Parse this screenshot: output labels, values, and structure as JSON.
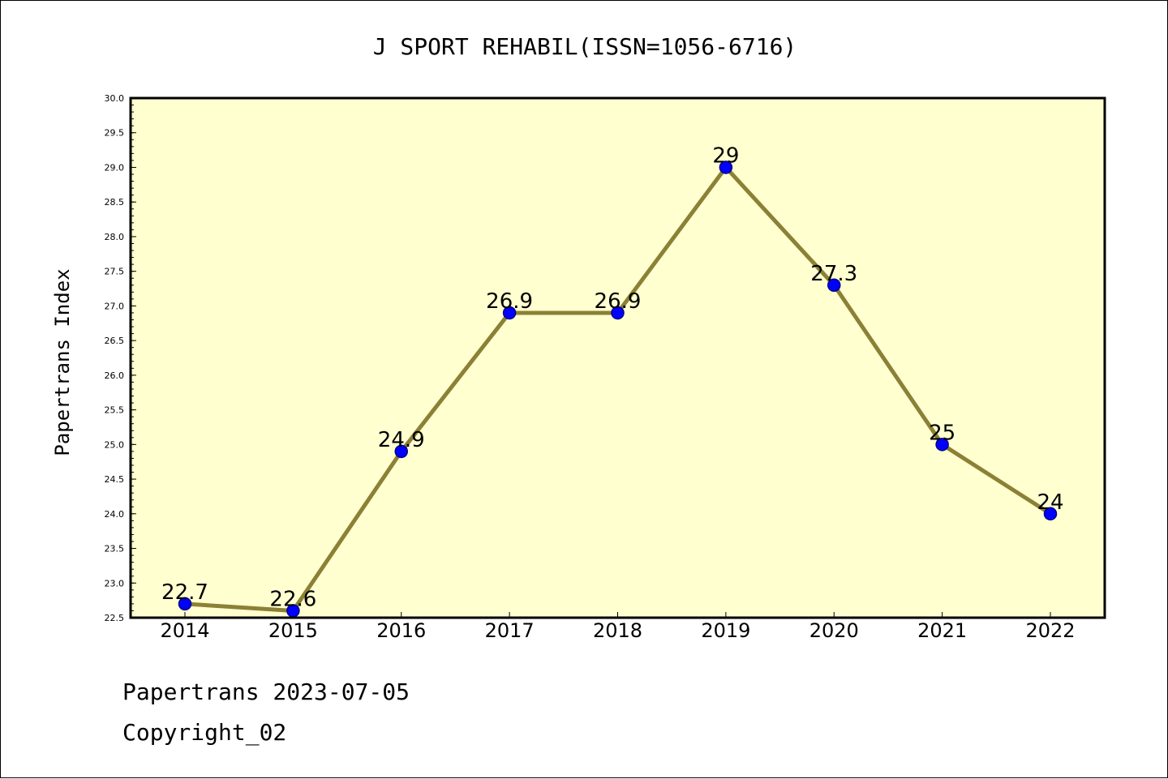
{
  "chart_data": {
    "type": "line",
    "title": "J SPORT REHABIL(ISSN=1056-6716)",
    "xlabel": "",
    "ylabel": "Papertrans Index",
    "categories": [
      "2014",
      "2015",
      "2016",
      "2017",
      "2018",
      "2019",
      "2020",
      "2021",
      "2022"
    ],
    "series": [
      {
        "values": [
          22.7,
          22.6,
          24.9,
          26.9,
          26.9,
          29,
          27.3,
          25,
          24
        ],
        "data_labels": [
          "22.7",
          "22.6",
          "24.9",
          "26.9",
          "26.9",
          "29",
          "27.3",
          "25",
          "24"
        ]
      }
    ],
    "ylim": [
      22.5,
      30.0
    ],
    "yticks": [
      "22.5",
      "23.0",
      "23.5",
      "24.0",
      "24.5",
      "25.0",
      "25.5",
      "26.0",
      "26.5",
      "27.0",
      "27.5",
      "28.0",
      "28.5",
      "29.0",
      "29.5",
      "30.0"
    ],
    "grid": false,
    "legend": "none",
    "colors": {
      "plot_background": "#ffffd0",
      "line": "#8b8035",
      "marker_fill": "#0000ff",
      "marker_edge": "#00008b",
      "axes": "#000000"
    }
  },
  "footer": {
    "date_text": "Papertrans 2023-07-05",
    "copyright_text": "Copyright_02"
  }
}
